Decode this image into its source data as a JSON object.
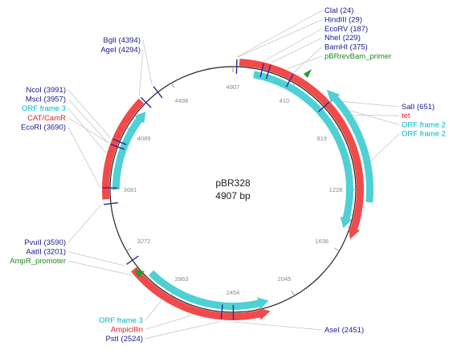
{
  "plasmid": {
    "name": "pBR328",
    "length_label": "4907 bp"
  },
  "colors": {
    "enzyme": "#1a1a8c",
    "gene": "#e02020",
    "orf": "#00b4c0",
    "primer": "#1a8a1a",
    "backbone": "#222222",
    "orf_fill": "#4fd0d4",
    "gene_fill": "#f24a4a",
    "leader": "#c8c8c8"
  },
  "ticks": [
    "4907",
    "410",
    "819",
    "1228",
    "1636",
    "2045",
    "2454",
    "2863",
    "3272",
    "3681",
    "4089",
    "4498"
  ],
  "features": {
    "top_right": [
      {
        "text": "ClaI (24)",
        "kind": "enzyme"
      },
      {
        "text": "HindIII (29)",
        "kind": "enzyme"
      },
      {
        "text": "EcoRV (187)",
        "kind": "enzyme"
      },
      {
        "text": "NheI (229)",
        "kind": "enzyme"
      },
      {
        "text": "BamHI (375)",
        "kind": "enzyme"
      },
      {
        "text": "pBRrevBam_primer",
        "kind": "primer"
      }
    ],
    "right": [
      {
        "text": "SalI (651)",
        "kind": "enzyme"
      },
      {
        "text": "tet",
        "kind": "gene"
      },
      {
        "text": "ORF frame 2",
        "kind": "orf"
      },
      {
        "text": "ORF frame 2",
        "kind": "orf"
      }
    ],
    "top_left": [
      {
        "text": "BglI (4394)",
        "kind": "enzyme"
      },
      {
        "text": "AgeI (4294)",
        "kind": "enzyme"
      }
    ],
    "left": [
      {
        "text": "NcoI (3991)",
        "kind": "enzyme"
      },
      {
        "text": "MscI (3957)",
        "kind": "enzyme"
      },
      {
        "text": "ORF frame 3",
        "kind": "orf"
      },
      {
        "text": "CAT/CamR",
        "kind": "gene"
      },
      {
        "text": "EcoRI (3690)",
        "kind": "enzyme"
      }
    ],
    "lower_left": [
      {
        "text": "PvuII (3590)",
        "kind": "enzyme"
      },
      {
        "text": "AatII (3201)",
        "kind": "enzyme"
      },
      {
        "text": "AmpR_promoter",
        "kind": "primer"
      }
    ],
    "bottom_left": [
      {
        "text": "ORF frame 3",
        "kind": "orf"
      },
      {
        "text": "Ampicillin",
        "kind": "gene"
      },
      {
        "text": "PstI (2524)",
        "kind": "enzyme"
      }
    ],
    "bottom_right": [
      {
        "text": "AseI (2451)",
        "kind": "enzyme"
      }
    ]
  }
}
